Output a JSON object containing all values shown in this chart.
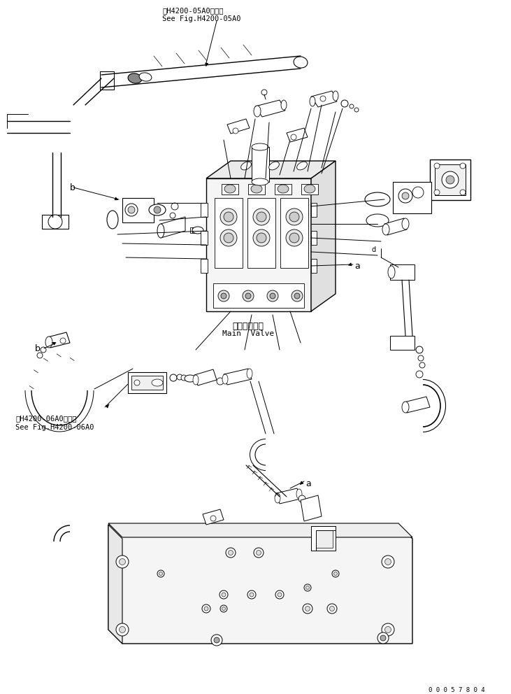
{
  "fig_width": 7.31,
  "fig_height": 9.92,
  "dpi": 100,
  "bg_color": "#ffffff",
  "lc": "#000000",
  "title_top_line1": "第H4200-05A0図参照",
  "title_top_line2": "See Fig.H4200-05A0",
  "title_bottom_line1": "第H4200-06A0図参照",
  "title_bottom_line2": "See Fig.H4200-06A0",
  "label_main_valve_jp": "メインバルブ",
  "label_main_valve_en": "Main  Valve",
  "label_a": "a",
  "label_b": "b",
  "serial_number": "0 0 0 5 7 8 0 4"
}
